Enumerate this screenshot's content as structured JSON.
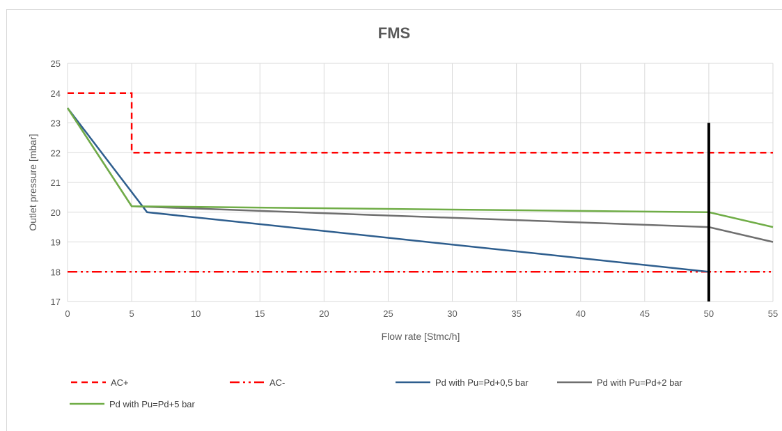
{
  "chart_data": {
    "type": "line",
    "title": "FMS",
    "xlabel": "Flow rate [Stmc/h]",
    "ylabel": "Outlet pressure [mbar]",
    "xlim": [
      0,
      55
    ],
    "ylim": [
      17,
      25
    ],
    "x_ticks": [
      0,
      5,
      10,
      15,
      20,
      25,
      30,
      35,
      40,
      45,
      50,
      55
    ],
    "y_ticks": [
      17,
      18,
      19,
      20,
      21,
      22,
      23,
      24,
      25
    ],
    "grid": true,
    "legend_position": "bottom",
    "series": [
      {
        "name": "AC+",
        "color": "#ff0000",
        "style": "dashed",
        "points": [
          [
            0,
            24
          ],
          [
            5,
            24
          ],
          [
            5,
            22
          ],
          [
            55,
            22
          ]
        ]
      },
      {
        "name": "AC-",
        "color": "#ff0000",
        "style": "dash-dot-dot",
        "points": [
          [
            0,
            18
          ],
          [
            55,
            18
          ]
        ]
      },
      {
        "name": "Pd with Pu=Pd+0,5 bar",
        "color": "#2e5e8e",
        "style": "solid",
        "points": [
          [
            0,
            23.5
          ],
          [
            6.2,
            20
          ],
          [
            50,
            18
          ]
        ]
      },
      {
        "name": "Pd with Pu=Pd+2 bar",
        "color": "#6f6f6f",
        "style": "solid",
        "points": [
          [
            0,
            23.5
          ],
          [
            5,
            20.2
          ],
          [
            50,
            19.5
          ],
          [
            55,
            19
          ]
        ]
      },
      {
        "name": "Pd with Pu=Pd+5 bar",
        "color": "#70ad47",
        "style": "solid",
        "points": [
          [
            0,
            23.5
          ],
          [
            5,
            20.2
          ],
          [
            50,
            20
          ],
          [
            55,
            19.5
          ]
        ]
      }
    ],
    "annotations": [
      {
        "type": "vertical-line",
        "x": 50,
        "y_from": 17,
        "y_to": 23,
        "color": "#000000"
      }
    ]
  }
}
